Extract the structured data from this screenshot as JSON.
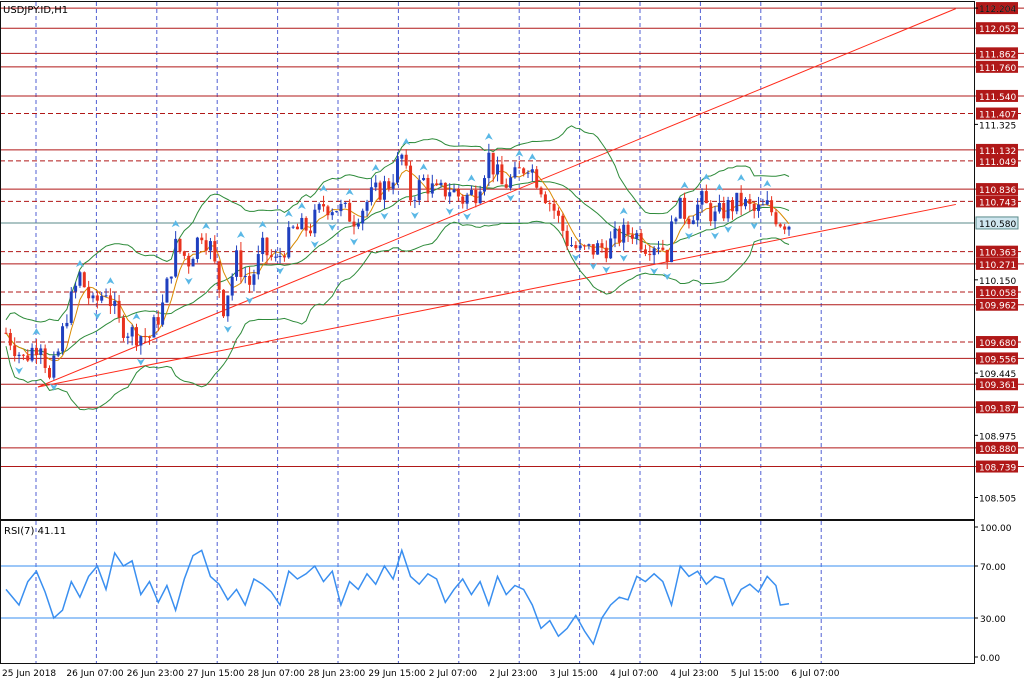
{
  "symbol_label": "USDJPY.ID,H1",
  "rsi_label": "RSI(7) 41.11",
  "colors": {
    "bull": "#1f3fbf",
    "bear": "#e8321e",
    "level": "#b01818",
    "channel": "#ff2a1a",
    "band": "#2e8b3a",
    "ma": "#d98a00",
    "rsi": "#3a8ff0",
    "price_line": "#5a8a8a",
    "grid": "#3344cc",
    "arrow": "#5ab8e6"
  },
  "chart_data": [
    {
      "type": "candlestick",
      "title": "USDJPY.ID,H1",
      "y_axis_side": "right",
      "ylim": [
        108.35,
        112.25
      ],
      "current_price": 110.58,
      "x_tick_labels": [
        "25 Jun 2018",
        "26 Jun 07:00",
        "26 Jun 23:00",
        "27 Jun 15:00",
        "28 Jun 07:00",
        "28 Jun 23:00",
        "29 Jun 15:00",
        "2 Jul 07:00",
        "2 Jul 23:00",
        "3 Jul 15:00",
        "4 Jul 07:00",
        "4 Jul 23:00",
        "5 Jul 15:00",
        "6 Jul 07:00"
      ],
      "y_tick_labels": [
        "112.204",
        "111.325",
        "110.150",
        "109.445",
        "108.975",
        "108.505"
      ],
      "level_lines": [
        {
          "value": "112.204",
          "style": "solid"
        },
        {
          "value": "112.052",
          "style": "solid"
        },
        {
          "value": "111.862",
          "style": "solid"
        },
        {
          "value": "111.760",
          "style": "solid"
        },
        {
          "value": "111.540",
          "style": "solid"
        },
        {
          "value": "111.407",
          "style": "dashed"
        },
        {
          "value": "111.132",
          "style": "solid"
        },
        {
          "value": "111.049",
          "style": "dashed"
        },
        {
          "value": "110.836",
          "style": "solid"
        },
        {
          "value": "110.743",
          "style": "dashed"
        },
        {
          "value": "110.363",
          "style": "dashed"
        },
        {
          "value": "110.271",
          "style": "solid"
        },
        {
          "value": "110.058",
          "style": "dashed"
        },
        {
          "value": "109.962",
          "style": "solid"
        },
        {
          "value": "109.680",
          "style": "dashed"
        },
        {
          "value": "109.556",
          "style": "solid"
        },
        {
          "value": "109.361",
          "style": "solid"
        },
        {
          "value": "109.187",
          "style": "solid"
        },
        {
          "value": "108.880",
          "style": "solid"
        },
        {
          "value": "108.739",
          "style": "solid"
        }
      ],
      "channel_lines": [
        {
          "from": [
            0,
            109.34
          ],
          "to": [
            211,
            112.2
          ]
        },
        {
          "from": [
            0,
            109.34
          ],
          "to": [
            211,
            110.72
          ]
        }
      ],
      "price_path": [
        [
          0,
          109.75
        ],
        [
          4,
          109.55
        ],
        [
          8,
          109.7
        ],
        [
          10,
          109.38
        ],
        [
          12,
          109.6
        ],
        [
          14,
          109.9
        ],
        [
          17,
          110.18
        ],
        [
          20,
          109.95
        ],
        [
          23,
          110.08
        ],
        [
          26,
          109.82
        ],
        [
          29,
          109.75
        ],
        [
          33,
          109.72
        ],
        [
          36,
          109.95
        ],
        [
          39,
          110.4
        ],
        [
          42,
          110.3
        ],
        [
          45,
          110.52
        ],
        [
          47,
          110.4
        ],
        [
          50,
          109.95
        ],
        [
          53,
          110.3
        ],
        [
          56,
          110.12
        ],
        [
          59,
          110.38
        ],
        [
          62,
          110.28
        ],
        [
          66,
          110.52
        ],
        [
          70,
          110.55
        ],
        [
          73,
          110.72
        ],
        [
          76,
          110.7
        ],
        [
          80,
          110.62
        ],
        [
          84,
          110.78
        ],
        [
          88,
          110.88
        ],
        [
          91,
          111.08
        ],
        [
          93,
          110.78
        ],
        [
          96,
          110.9
        ],
        [
          99,
          110.8
        ],
        [
          102,
          110.84
        ],
        [
          105,
          110.76
        ],
        [
          108,
          110.82
        ],
        [
          111,
          111.08
        ],
        [
          114,
          110.86
        ],
        [
          117,
          110.92
        ],
        [
          120,
          111.04
        ],
        [
          123,
          110.86
        ],
        [
          126,
          110.68
        ],
        [
          129,
          110.45
        ],
        [
          132,
          110.36
        ],
        [
          135,
          110.38
        ],
        [
          138,
          110.4
        ],
        [
          141,
          110.48
        ],
        [
          144,
          110.52
        ],
        [
          147,
          110.42
        ],
        [
          150,
          110.44
        ],
        [
          152,
          110.35
        ],
        [
          154,
          110.7
        ],
        [
          157,
          110.64
        ],
        [
          160,
          110.74
        ],
        [
          163,
          110.62
        ],
        [
          166,
          110.7
        ],
        [
          169,
          110.74
        ],
        [
          172,
          110.66
        ],
        [
          175,
          110.7
        ],
        [
          178,
          110.6
        ],
        [
          180,
          110.58
        ]
      ],
      "rsi": {
        "name": "RSI(7)",
        "ylim": [
          0,
          100
        ],
        "y_tick_labels": [
          "100.00",
          "70.00",
          "30.00",
          "0.00"
        ],
        "levels": [
          70,
          30
        ],
        "current": 41.11,
        "values": [
          [
            0,
            52
          ],
          [
            3,
            40
          ],
          [
            5,
            58
          ],
          [
            7,
            66
          ],
          [
            9,
            50
          ],
          [
            11,
            30
          ],
          [
            13,
            36
          ],
          [
            15,
            58
          ],
          [
            17,
            46
          ],
          [
            19,
            62
          ],
          [
            21,
            70
          ],
          [
            23,
            52
          ],
          [
            25,
            80
          ],
          [
            27,
            70
          ],
          [
            29,
            74
          ],
          [
            31,
            48
          ],
          [
            33,
            58
          ],
          [
            35,
            42
          ],
          [
            37,
            55
          ],
          [
            39,
            36
          ],
          [
            41,
            60
          ],
          [
            43,
            78
          ],
          [
            45,
            82
          ],
          [
            47,
            62
          ],
          [
            49,
            56
          ],
          [
            51,
            44
          ],
          [
            53,
            52
          ],
          [
            55,
            40
          ],
          [
            57,
            60
          ],
          [
            59,
            56
          ],
          [
            61,
            50
          ],
          [
            63,
            40
          ],
          [
            65,
            66
          ],
          [
            67,
            60
          ],
          [
            69,
            64
          ],
          [
            71,
            70
          ],
          [
            73,
            58
          ],
          [
            75,
            66
          ],
          [
            77,
            40
          ],
          [
            79,
            58
          ],
          [
            81,
            52
          ],
          [
            83,
            64
          ],
          [
            85,
            56
          ],
          [
            87,
            70
          ],
          [
            89,
            60
          ],
          [
            91,
            82
          ],
          [
            93,
            62
          ],
          [
            95,
            56
          ],
          [
            97,
            64
          ],
          [
            99,
            60
          ],
          [
            101,
            42
          ],
          [
            103,
            52
          ],
          [
            105,
            60
          ],
          [
            107,
            48
          ],
          [
            109,
            58
          ],
          [
            111,
            40
          ],
          [
            113,
            62
          ],
          [
            115,
            48
          ],
          [
            117,
            55
          ],
          [
            119,
            52
          ],
          [
            121,
            40
          ],
          [
            123,
            22
          ],
          [
            125,
            28
          ],
          [
            127,
            16
          ],
          [
            129,
            22
          ],
          [
            131,
            32
          ],
          [
            133,
            20
          ],
          [
            135,
            10
          ],
          [
            137,
            30
          ],
          [
            139,
            40
          ],
          [
            141,
            46
          ],
          [
            143,
            44
          ],
          [
            145,
            62
          ],
          [
            147,
            58
          ],
          [
            149,
            64
          ],
          [
            151,
            58
          ],
          [
            153,
            40
          ],
          [
            155,
            70
          ],
          [
            157,
            62
          ],
          [
            159,
            66
          ],
          [
            161,
            56
          ],
          [
            163,
            62
          ],
          [
            165,
            60
          ],
          [
            167,
            40
          ],
          [
            169,
            52
          ],
          [
            171,
            56
          ],
          [
            173,
            50
          ],
          [
            175,
            62
          ],
          [
            177,
            55
          ],
          [
            178,
            40
          ],
          [
            180,
            41
          ]
        ]
      }
    }
  ]
}
